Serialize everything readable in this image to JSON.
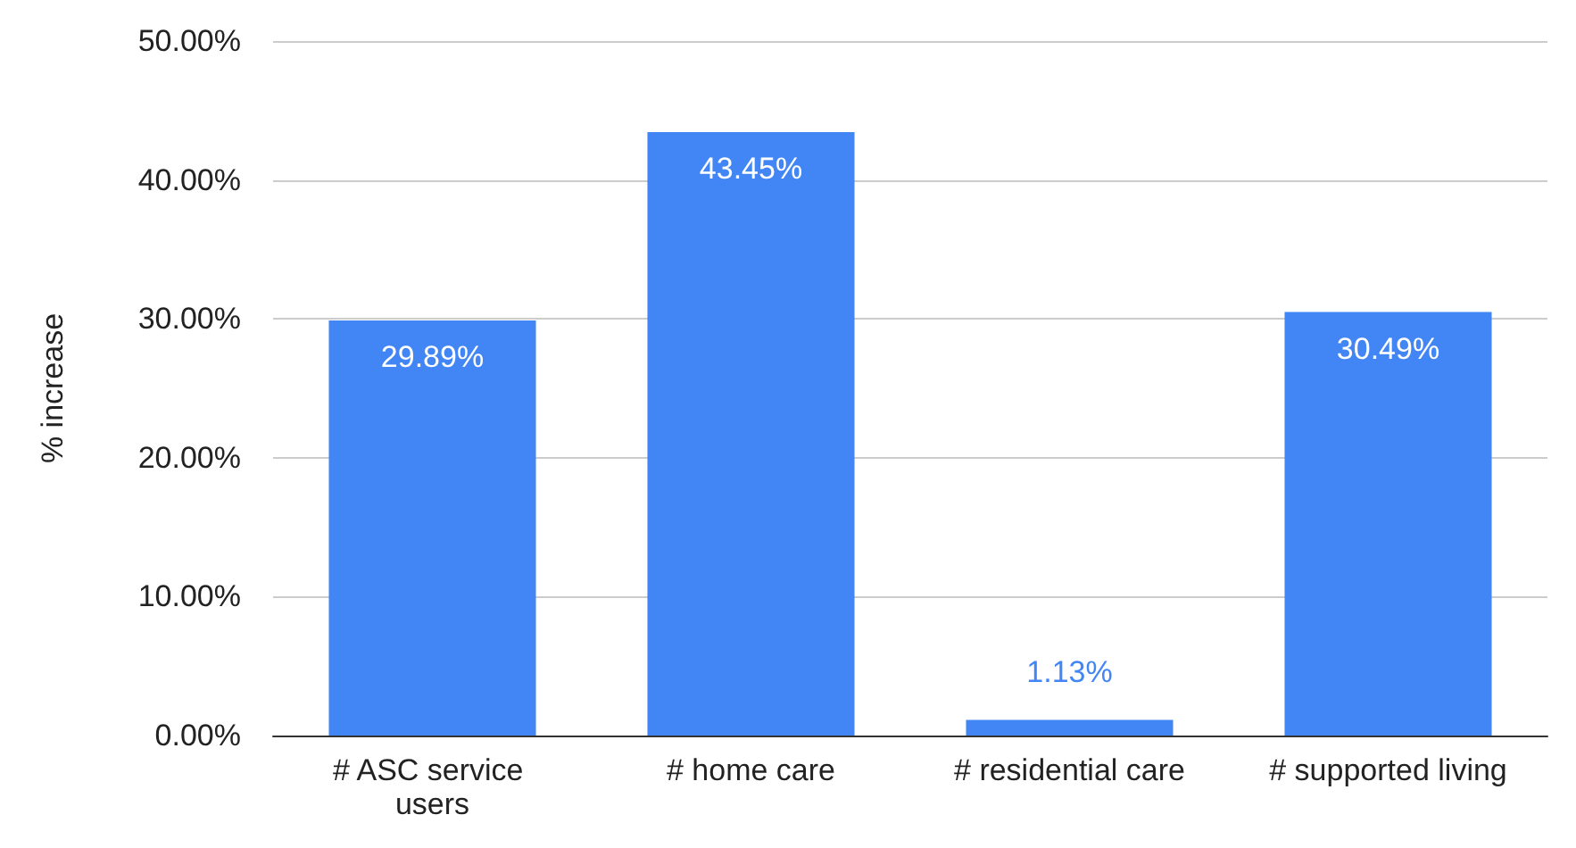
{
  "chart_data": {
    "type": "bar",
    "ylabel": "% increase",
    "categories": [
      "# ASC service users",
      "# home care",
      "# residential care",
      "# supported living"
    ],
    "values": [
      29.89,
      43.45,
      1.13,
      30.49
    ],
    "value_labels": [
      "29.89%",
      "43.45%",
      "1.13%",
      "30.49%"
    ],
    "color": "#4285f4",
    "ylim": [
      0,
      50
    ],
    "yticks": [
      {
        "value": 0,
        "label": "0.00%"
      },
      {
        "value": 10,
        "label": "10.00%"
      },
      {
        "value": 20,
        "label": "20.00%"
      },
      {
        "value": 30,
        "label": "30.00%"
      },
      {
        "value": 40,
        "label": "40.00%"
      },
      {
        "value": 50,
        "label": "50.00%"
      }
    ],
    "grid": "y"
  }
}
